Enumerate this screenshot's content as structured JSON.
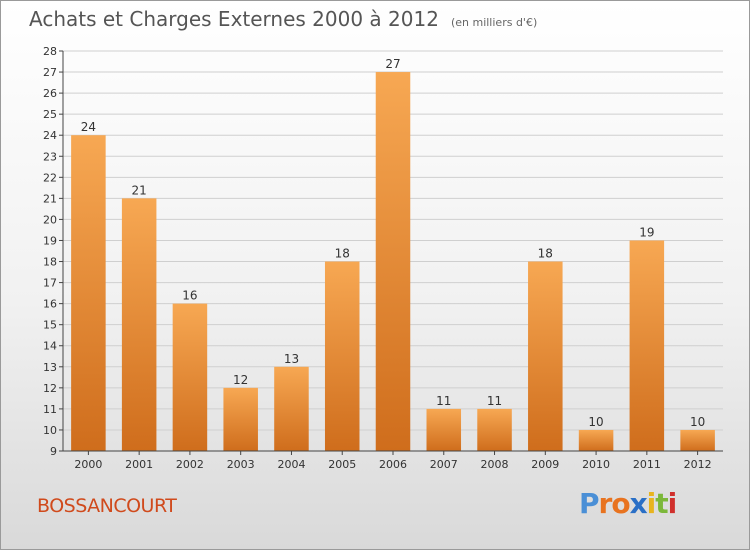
{
  "header": {
    "title": "Achats et Charges Externes 2000 à 2012",
    "unit": "(en milliers d'€)"
  },
  "commune": "BOSSANCOURT",
  "logo": {
    "text": "Proxiti",
    "letter_colors": [
      "#4a8fd6",
      "#e8731f",
      "#e8731f",
      "#2a6fc6",
      "#e8b41f",
      "#7cb83a",
      "#d0302c"
    ]
  },
  "colors": {
    "bar_top": "#f7a853",
    "bar_bottom": "#cf6d1c",
    "grid": "#cfcfcf",
    "axis": "#444444",
    "label_text": "#333333"
  },
  "chart_data": {
    "type": "bar",
    "title": "Achats et Charges Externes 2000 à 2012",
    "xlabel": "",
    "ylabel": "",
    "categories": [
      "2000",
      "2001",
      "2002",
      "2003",
      "2004",
      "2005",
      "2006",
      "2007",
      "2008",
      "2009",
      "2010",
      "2011",
      "2012"
    ],
    "values": [
      24,
      21,
      16,
      12,
      13,
      18,
      27,
      11,
      11,
      18,
      10,
      19,
      10
    ],
    "ylim": [
      9,
      28
    ],
    "yticks": [
      9,
      10,
      11,
      12,
      13,
      14,
      15,
      16,
      17,
      18,
      19,
      20,
      21,
      22,
      23,
      24,
      25,
      26,
      27,
      28
    ],
    "grid": true,
    "data_labels": true
  }
}
